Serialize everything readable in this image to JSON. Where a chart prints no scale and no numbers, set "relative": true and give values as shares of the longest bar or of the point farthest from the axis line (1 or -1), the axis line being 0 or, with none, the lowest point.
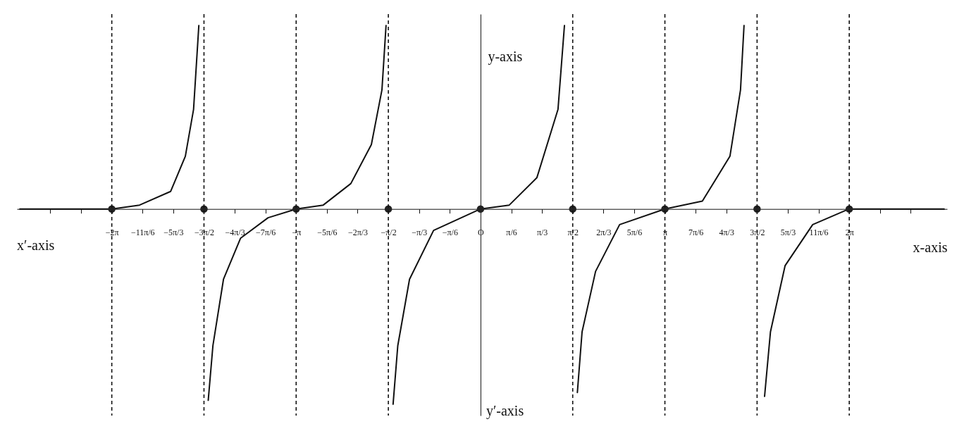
{
  "chart_data": {
    "type": "line",
    "relative": true,
    "xlabel": "x-axis",
    "ylabel": "y-axis",
    "annotations": [
      "x′-axis",
      "y′-axis"
    ],
    "xlim": [
      -7.9,
      7.95
    ],
    "xticks": [
      {
        "value": -7.3304,
        "label": null
      },
      {
        "value": -6.8068,
        "label": null
      },
      {
        "value": -6.2832,
        "label": "−2π"
      },
      {
        "value": -5.7596,
        "label": "−11π/6"
      },
      {
        "value": -5.236,
        "label": "−5π/3"
      },
      {
        "value": -4.7124,
        "label": "−3π/2"
      },
      {
        "value": -4.1888,
        "label": "−4π/3"
      },
      {
        "value": -3.6652,
        "label": "−7π/6"
      },
      {
        "value": -3.1416,
        "label": "−π"
      },
      {
        "value": -2.618,
        "label": "−5π/6"
      },
      {
        "value": -2.0944,
        "label": "−2π/3"
      },
      {
        "value": -1.5708,
        "label": "−π/2"
      },
      {
        "value": -1.0472,
        "label": "−π/3"
      },
      {
        "value": -0.5236,
        "label": "−π/6"
      },
      {
        "value": 0,
        "label": "O"
      },
      {
        "value": 0.5236,
        "label": "π/6"
      },
      {
        "value": 1.0472,
        "label": "π/3"
      },
      {
        "value": 1.5708,
        "label": "π/2"
      },
      {
        "value": 2.0944,
        "label": "2π/3"
      },
      {
        "value": 2.618,
        "label": "5π/6"
      },
      {
        "value": 3.1416,
        "label": "π"
      },
      {
        "value": 3.6652,
        "label": "7π/6"
      },
      {
        "value": 4.1888,
        "label": "4π/3"
      },
      {
        "value": 4.7124,
        "label": "3π/2"
      },
      {
        "value": 5.236,
        "label": "5π/3"
      },
      {
        "value": 5.7596,
        "label": "11π/6"
      },
      {
        "value": 6.2832,
        "label": "2π"
      },
      {
        "value": 6.8068,
        "label": null
      },
      {
        "value": 7.3304,
        "label": null
      }
    ],
    "series": [
      {
        "color": "#111111",
        "x": [
          -7.85,
          -7.0,
          -6.28,
          -5.81,
          -5.28,
          -5.03,
          -4.89,
          -4.8
        ],
        "values": [
          0,
          0,
          0,
          0.02,
          0.09,
          0.27,
          0.51,
          0.94
        ]
      },
      {
        "color": "#111111",
        "x": [
          -4.64,
          -4.56,
          -4.38,
          -4.09,
          -3.62,
          -3.14,
          -2.68,
          -2.21,
          -1.86,
          -1.68,
          -1.61
        ],
        "values": [
          -0.98,
          -0.7,
          -0.36,
          -0.15,
          -0.045,
          0,
          0.02,
          0.13,
          0.33,
          0.61,
          0.94
        ]
      },
      {
        "color": "#111111",
        "x": [
          -1.49,
          -1.41,
          -1.21,
          -0.8,
          0,
          0.49,
          0.96,
          1.32,
          1.43
        ],
        "values": [
          -1,
          -0.7,
          -0.36,
          -0.11,
          0,
          0.02,
          0.16,
          0.51,
          0.94
        ]
      },
      {
        "color": "#111111",
        "x": [
          1.65,
          1.73,
          1.96,
          2.37,
          3.14,
          3.78,
          4.25,
          4.43,
          4.49
        ],
        "values": [
          -0.94,
          -0.63,
          -0.32,
          -0.08,
          0,
          0.04,
          0.27,
          0.61,
          0.94
        ]
      },
      {
        "color": "#111111",
        "x": [
          4.84,
          4.94,
          5.19,
          5.66,
          6.28,
          7.9
        ],
        "values": [
          -0.96,
          -0.63,
          -0.29,
          -0.08,
          0,
          0
        ]
      },
      {
        "type": "scatter",
        "color": "#222222",
        "marker": "circle",
        "x": [
          -6.2832,
          -4.7124,
          -3.1416,
          -1.5708,
          0,
          1.5708,
          3.1416,
          4.7124,
          6.2832
        ],
        "values": [
          0,
          0,
          0,
          0,
          0,
          0,
          0,
          0,
          0
        ]
      }
    ],
    "ref_lines": [
      {
        "axis": "x",
        "value": -6.2832,
        "color": "#111111",
        "line_style": "dashed"
      },
      {
        "axis": "x",
        "value": -4.7124,
        "color": "#111111",
        "line_style": "dashed"
      },
      {
        "axis": "x",
        "value": -3.1416,
        "color": "#111111",
        "line_style": "dashed"
      },
      {
        "axis": "x",
        "value": -1.5708,
        "color": "#111111",
        "line_style": "dashed"
      },
      {
        "axis": "x",
        "value": 1.5708,
        "color": "#111111",
        "line_style": "dashed"
      },
      {
        "axis": "x",
        "value": 3.1416,
        "color": "#111111",
        "line_style": "dashed"
      },
      {
        "axis": "x",
        "value": 4.7124,
        "color": "#111111",
        "line_style": "dashed"
      },
      {
        "axis": "x",
        "value": 6.2832,
        "color": "#111111",
        "line_style": "dashed"
      }
    ]
  }
}
